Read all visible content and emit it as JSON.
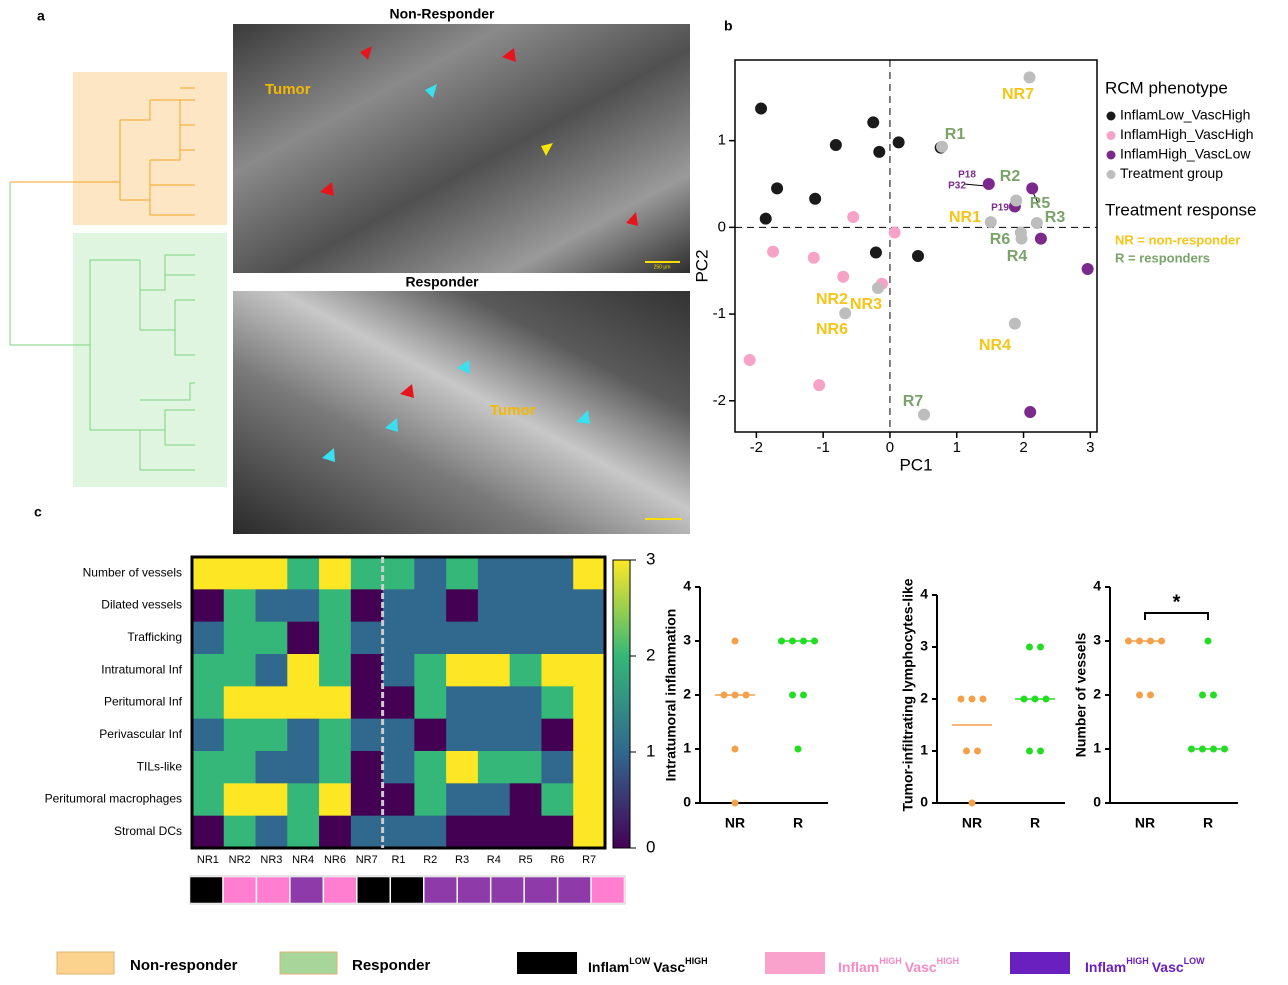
{
  "panel_labels": [
    "a",
    "b",
    "c"
  ],
  "micrographs": {
    "top": {
      "title": "Non-Responder",
      "label": "Tumor",
      "scale": "250 μm"
    },
    "bottom": {
      "title": "Responder",
      "label": "Tumor"
    }
  },
  "chart_data": [
    {
      "type": "scatter",
      "xlabel": "PC1",
      "ylabel": "PC2",
      "xlim": [
        -2.32,
        3.1
      ],
      "ylim": [
        -2.36,
        1.93
      ],
      "xticks": [
        -2,
        -1,
        0,
        1,
        2,
        3
      ],
      "yticks": [
        -2,
        -1,
        0,
        1
      ],
      "zero_lines": true,
      "legend_title": "RCM phenotype",
      "series": [
        {
          "name": "InflamLow_VascHigh",
          "color": "#1a1a1a",
          "x": [
            -1.93,
            -0.81,
            -0.25,
            0.13,
            -0.16,
            -1.69,
            -1.12,
            -1.86,
            -0.21,
            0.42,
            0.76
          ],
          "values": [
            1.37,
            0.95,
            1.21,
            0.98,
            0.87,
            0.45,
            0.33,
            0.1,
            -0.29,
            -0.33,
            0.92
          ]
        },
        {
          "name": "InflamHigh_VascHigh",
          "color": "#f7a3c7",
          "x": [
            -0.55,
            0.07,
            -1.75,
            -1.14,
            -0.7,
            -0.12,
            -2.1,
            -1.06
          ],
          "values": [
            0.12,
            -0.06,
            -0.28,
            -0.35,
            -0.57,
            -0.65,
            -1.53,
            -1.82
          ]
        },
        {
          "name": "InflamHigh_VascLow",
          "color": "#7b2a8c",
          "x": [
            1.48,
            1.87,
            2.13,
            2.26,
            2.96,
            2.1
          ],
          "values": [
            0.5,
            0.24,
            0.45,
            -0.13,
            -0.48,
            -2.13
          ]
        },
        {
          "name": "Treatment group",
          "color": "#bdbdbd",
          "x": [
            2.09,
            0.78,
            1.89,
            1.51,
            1.96,
            1.97,
            2.2,
            -0.18,
            -0.67,
            1.87,
            0.51
          ],
          "values": [
            1.73,
            0.93,
            0.31,
            0.06,
            -0.06,
            -0.13,
            0.05,
            -0.7,
            -0.99,
            -1.11,
            -2.16
          ]
        }
      ],
      "legend2_title": "Treatment response",
      "legend2": [
        {
          "text": "NR = non-responder",
          "color": "#f5c518"
        },
        {
          "text": "R = responders",
          "color": "#7aa36a"
        }
      ],
      "annotations": [
        {
          "text": "NR7",
          "color": "#f5c518"
        },
        {
          "text": "R1",
          "color": "#7aa36a"
        },
        {
          "text": "P18",
          "color": "#7b2a8c"
        },
        {
          "text": "P32",
          "color": "#7b2a8c"
        },
        {
          "text": "R2",
          "color": "#7aa36a"
        },
        {
          "text": "P19",
          "color": "#7b2a8c"
        },
        {
          "text": "R5",
          "color": "#7aa36a"
        },
        {
          "text": "R3",
          "color": "#7aa36a"
        },
        {
          "text": "NR1",
          "color": "#f5c518"
        },
        {
          "text": "R6",
          "color": "#7aa36a"
        },
        {
          "text": "R4",
          "color": "#7aa36a"
        },
        {
          "text": "NR2",
          "color": "#f5c518"
        },
        {
          "text": "NR3",
          "color": "#f5c518"
        },
        {
          "text": "NR6",
          "color": "#f5c518"
        },
        {
          "text": "NR4",
          "color": "#f5c518"
        },
        {
          "text": "R7",
          "color": "#7aa36a"
        }
      ]
    },
    {
      "type": "heatmap",
      "rows": [
        "Number of vessels",
        "Dilated vessels",
        "Trafficking",
        "Intratumoral Inf",
        "Peritumoral Inf",
        "Perivascular Inf",
        "TILs-like",
        "Peritumoral macrophages",
        "Stromal DCs"
      ],
      "columns": [
        "NR1",
        "NR2",
        "NR3",
        "NR4",
        "NR6",
        "NR7",
        "R1",
        "R2",
        "R3",
        "R4",
        "R5",
        "R6",
        "R7"
      ],
      "values": [
        [
          3,
          3,
          3,
          2,
          3,
          2,
          2,
          1,
          2,
          1,
          1,
          1,
          3
        ],
        [
          0,
          2,
          1,
          1,
          2,
          0,
          1,
          1,
          0,
          1,
          1,
          1,
          1
        ],
        [
          1,
          2,
          2,
          0,
          2,
          1,
          1,
          1,
          1,
          1,
          1,
          1,
          1
        ],
        [
          2,
          2,
          1,
          3,
          2,
          0,
          1,
          2,
          3,
          3,
          2,
          3,
          3
        ],
        [
          2,
          3,
          3,
          3,
          3,
          0,
          0,
          2,
          1,
          1,
          1,
          2,
          3
        ],
        [
          1,
          2,
          2,
          1,
          2,
          1,
          1,
          0,
          1,
          1,
          1,
          0,
          3
        ],
        [
          2,
          2,
          1,
          1,
          2,
          0,
          1,
          2,
          3,
          2,
          2,
          1,
          3
        ],
        [
          2,
          3,
          3,
          2,
          3,
          0,
          0,
          2,
          1,
          1,
          0,
          2,
          3
        ],
        [
          0,
          2,
          1,
          2,
          0,
          1,
          1,
          1,
          0,
          0,
          0,
          0,
          3
        ]
      ],
      "colormap": "viridis",
      "clim": [
        0,
        3
      ],
      "cticks": [
        0,
        1,
        2,
        3
      ],
      "separator_after": "NR7",
      "phenotype_colors": [
        "#000000",
        "#ff7ed0",
        "#ff7ed0",
        "#8e3aa8",
        "#ff7ed0",
        "#000000",
        "#000000",
        "#8e3aa8",
        "#8e3aa8",
        "#8e3aa8",
        "#8e3aa8",
        "#8e3aa8",
        "#ff7ed0"
      ]
    },
    {
      "type": "strip",
      "ylabel": "Intratumoral inflammation",
      "categories": [
        "NR",
        "R"
      ],
      "colors": [
        "#f5a04a",
        "#22dd22"
      ],
      "values": [
        [
          3,
          2,
          2,
          2,
          1,
          0
        ],
        [
          3,
          3,
          3,
          3,
          2,
          2,
          1
        ]
      ],
      "medians": [
        2,
        3
      ],
      "ylim": [
        0,
        4
      ],
      "yticks": [
        0,
        1,
        2,
        3,
        4
      ]
    },
    {
      "type": "strip",
      "ylabel": "Tumor-infiltrating lymphocytes-like",
      "categories": [
        "NR",
        "R"
      ],
      "colors": [
        "#f5a04a",
        "#22dd22"
      ],
      "values": [
        [
          2,
          2,
          2,
          1,
          1,
          0
        ],
        [
          3,
          3,
          2,
          2,
          2,
          1,
          1
        ]
      ],
      "medians": [
        1.5,
        2
      ],
      "ylim": [
        0,
        4
      ],
      "yticks": [
        0,
        1,
        2,
        3,
        4
      ]
    },
    {
      "type": "strip",
      "ylabel": "Number of vessels",
      "categories": [
        "NR",
        "R"
      ],
      "colors": [
        "#f5a04a",
        "#22dd22"
      ],
      "values": [
        [
          3,
          3,
          3,
          3,
          2,
          2
        ],
        [
          3,
          2,
          2,
          1,
          1,
          1,
          1
        ]
      ],
      "medians": [
        3,
        1
      ],
      "ylim": [
        0,
        4
      ],
      "yticks": [
        0,
        1,
        2,
        3,
        4
      ],
      "significance": "*"
    }
  ],
  "legend": [
    {
      "label": "Non-responder",
      "color": "#fbd38f"
    },
    {
      "label": "Responder",
      "color": "#a8d59a"
    },
    {
      "parts": [
        "Inflam",
        "LOW",
        "Vasc",
        "HIGH"
      ],
      "color": "#000000",
      "text_color": "#000000"
    },
    {
      "parts": [
        "Inflam",
        "HIGH",
        "Vasc",
        "HIGH"
      ],
      "color": "#f9a3cc",
      "text_color": "#f48bc4"
    },
    {
      "parts": [
        "Inflam",
        "HIGH",
        "Vasc",
        "LOW"
      ],
      "color": "#6a1fbf",
      "text_color": "#6a1fbf"
    }
  ]
}
